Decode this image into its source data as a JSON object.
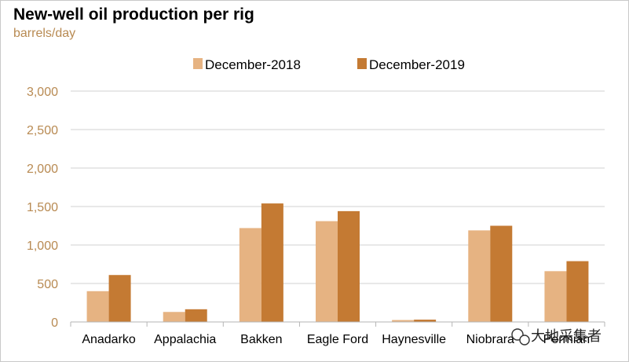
{
  "chart_data": {
    "type": "bar",
    "title": "New-well oil production per rig",
    "subtitle": "barrels/day",
    "categories": [
      "Anadarko",
      "Appalachia",
      "Bakken",
      "Eagle Ford",
      "Haynesville",
      "Niobrara",
      "Permian"
    ],
    "series": [
      {
        "name": "December-2018",
        "values": [
          400,
          130,
          1220,
          1310,
          25,
          1190,
          660
        ],
        "color": "#e6b382"
      },
      {
        "name": "December-2019",
        "values": [
          610,
          165,
          1540,
          1440,
          30,
          1250,
          790
        ],
        "color": "#c47a33"
      }
    ],
    "ylim": [
      0,
      3000
    ],
    "yticks": [
      0,
      500,
      1000,
      1500,
      2000,
      2500,
      3000
    ],
    "ytick_labels": [
      "0",
      "500",
      "1,000",
      "1,500",
      "2,000",
      "2,500",
      "3,000"
    ],
    "grid": true,
    "legend_position": "top-center"
  },
  "watermark": {
    "text": "大地采集者",
    "icon": "wechat-icon"
  }
}
